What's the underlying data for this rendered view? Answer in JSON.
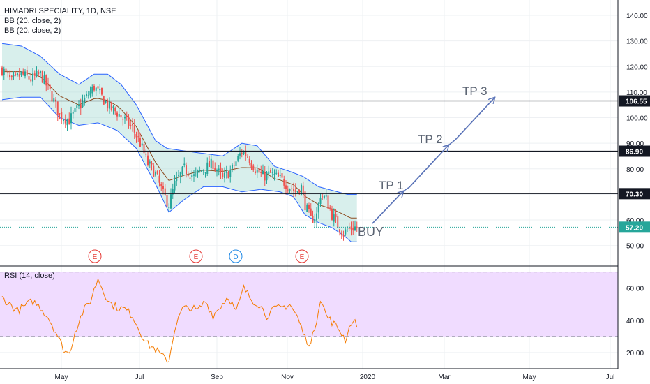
{
  "legend": {
    "title": "HIMADRI SPECIALITY, 1D, NSE",
    "bb1": "BB (20, close, 2)",
    "bb2": "BB (20, close, 2)",
    "rsi": "RSI (14, close)"
  },
  "annotations": {
    "buy": "BUY",
    "tp1": "TP 1",
    "tp2": "TP 2",
    "tp3": "TP 3"
  },
  "colors": {
    "candle_up": "#26a69a",
    "candle_down": "#ef5350",
    "bb_fill": "#a8dcd5",
    "bb_line": "#2962ff",
    "bb_basis": "#8d4a1e",
    "rsi_line": "#f57c00",
    "rsi_band": "#f0dcff",
    "arrow": "#5b74b8",
    "event_red": "#e53935",
    "event_blue": "#1e88e5"
  },
  "chart_data": {
    "type": "candlestick",
    "symbol": "HIMADRI SPECIALITY",
    "interval": "1D",
    "exchange": "NSE",
    "price_axis_ticks": [
      "140.00",
      "130.00",
      "120.00",
      "110.00",
      "100.00",
      "90.00",
      "80.00",
      "70.00",
      "60.00",
      "50.00"
    ],
    "price_ylim": [
      42,
      146
    ],
    "levels": [
      {
        "label": "106.55",
        "value": 106.55
      },
      {
        "label": "86.90",
        "value": 86.9
      },
      {
        "label": "70.30",
        "value": 70.3
      }
    ],
    "last_price": {
      "label": "57.20",
      "value": 57.2
    },
    "time_axis_ticks": [
      "May",
      "Jul",
      "Sep",
      "Nov",
      "2020",
      "Mar",
      "May",
      "Jul"
    ],
    "events": [
      "E",
      "E",
      "D",
      "E"
    ],
    "close_waypoints": [
      [
        0,
        119
      ],
      [
        5,
        114
      ],
      [
        10,
        117
      ],
      [
        15,
        115
      ],
      [
        20,
        117
      ],
      [
        25,
        110
      ],
      [
        30,
        101
      ],
      [
        35,
        99
      ],
      [
        40,
        104
      ],
      [
        45,
        109
      ],
      [
        48,
        112
      ],
      [
        52,
        108
      ],
      [
        56,
        104
      ],
      [
        60,
        102
      ],
      [
        64,
        99
      ],
      [
        68,
        96
      ],
      [
        72,
        90
      ],
      [
        76,
        82
      ],
      [
        80,
        78
      ],
      [
        84,
        70
      ],
      [
        87,
        66
      ],
      [
        90,
        74
      ],
      [
        95,
        80
      ],
      [
        100,
        77
      ],
      [
        105,
        80
      ],
      [
        110,
        82
      ],
      [
        115,
        76
      ],
      [
        120,
        80
      ],
      [
        125,
        87
      ],
      [
        128,
        85
      ],
      [
        132,
        80
      ],
      [
        136,
        77
      ],
      [
        140,
        78
      ],
      [
        145,
        76
      ],
      [
        150,
        73
      ],
      [
        153,
        71
      ],
      [
        156,
        73
      ],
      [
        158,
        66
      ],
      [
        161,
        60
      ],
      [
        164,
        62
      ],
      [
        166,
        70
      ],
      [
        169,
        68
      ],
      [
        172,
        62
      ],
      [
        175,
        58
      ],
      [
        178,
        55
      ],
      [
        182,
        57
      ],
      [
        185,
        57.2
      ]
    ],
    "bb_upper_waypoints": [
      [
        0,
        129
      ],
      [
        10,
        128
      ],
      [
        20,
        124
      ],
      [
        30,
        117
      ],
      [
        40,
        113
      ],
      [
        48,
        117
      ],
      [
        55,
        117
      ],
      [
        62,
        113
      ],
      [
        70,
        105
      ],
      [
        80,
        91
      ],
      [
        86,
        88
      ],
      [
        95,
        87
      ],
      [
        105,
        86
      ],
      [
        115,
        85
      ],
      [
        125,
        90
      ],
      [
        133,
        89
      ],
      [
        142,
        81
      ],
      [
        150,
        79
      ],
      [
        157,
        77
      ],
      [
        165,
        73
      ],
      [
        175,
        71
      ],
      [
        180,
        70
      ],
      [
        185,
        70
      ]
    ],
    "bb_lower_waypoints": [
      [
        0,
        107
      ],
      [
        10,
        108
      ],
      [
        20,
        108
      ],
      [
        30,
        100
      ],
      [
        40,
        97
      ],
      [
        50,
        98
      ],
      [
        60,
        95
      ],
      [
        70,
        88
      ],
      [
        80,
        74
      ],
      [
        87,
        63
      ],
      [
        95,
        68
      ],
      [
        105,
        73
      ],
      [
        115,
        73
      ],
      [
        125,
        71
      ],
      [
        135,
        72
      ],
      [
        145,
        71
      ],
      [
        152,
        69
      ],
      [
        158,
        62
      ],
      [
        165,
        59
      ],
      [
        172,
        57
      ],
      [
        178,
        54
      ],
      [
        182,
        51.5
      ],
      [
        185,
        51.5
      ]
    ],
    "rsi_ticks": [
      "60.00",
      "40.00",
      "20.00"
    ],
    "rsi_ylim": [
      10,
      72
    ],
    "rsi_band": [
      30,
      70
    ],
    "rsi_waypoints": [
      [
        0,
        54
      ],
      [
        4,
        50
      ],
      [
        8,
        46
      ],
      [
        12,
        49
      ],
      [
        16,
        52
      ],
      [
        20,
        48
      ],
      [
        24,
        42
      ],
      [
        28,
        33
      ],
      [
        32,
        22
      ],
      [
        35,
        19
      ],
      [
        38,
        33
      ],
      [
        42,
        45
      ],
      [
        46,
        52
      ],
      [
        50,
        66
      ],
      [
        53,
        58
      ],
      [
        56,
        51
      ],
      [
        60,
        48
      ],
      [
        64,
        47
      ],
      [
        68,
        43
      ],
      [
        72,
        33
      ],
      [
        76,
        25
      ],
      [
        80,
        22
      ],
      [
        84,
        17
      ],
      [
        87,
        15
      ],
      [
        90,
        35
      ],
      [
        94,
        47
      ],
      [
        98,
        48
      ],
      [
        102,
        46
      ],
      [
        106,
        52
      ],
      [
        110,
        43
      ],
      [
        114,
        49
      ],
      [
        118,
        55
      ],
      [
        122,
        45
      ],
      [
        126,
        60
      ],
      [
        130,
        53
      ],
      [
        134,
        50
      ],
      [
        138,
        43
      ],
      [
        142,
        47
      ],
      [
        146,
        48
      ],
      [
        150,
        50
      ],
      [
        154,
        42
      ],
      [
        158,
        29
      ],
      [
        161,
        25
      ],
      [
        164,
        41
      ],
      [
        166,
        54
      ],
      [
        169,
        43
      ],
      [
        172,
        39
      ],
      [
        176,
        34
      ],
      [
        179,
        28
      ],
      [
        182,
        39
      ],
      [
        185,
        38
      ]
    ]
  }
}
